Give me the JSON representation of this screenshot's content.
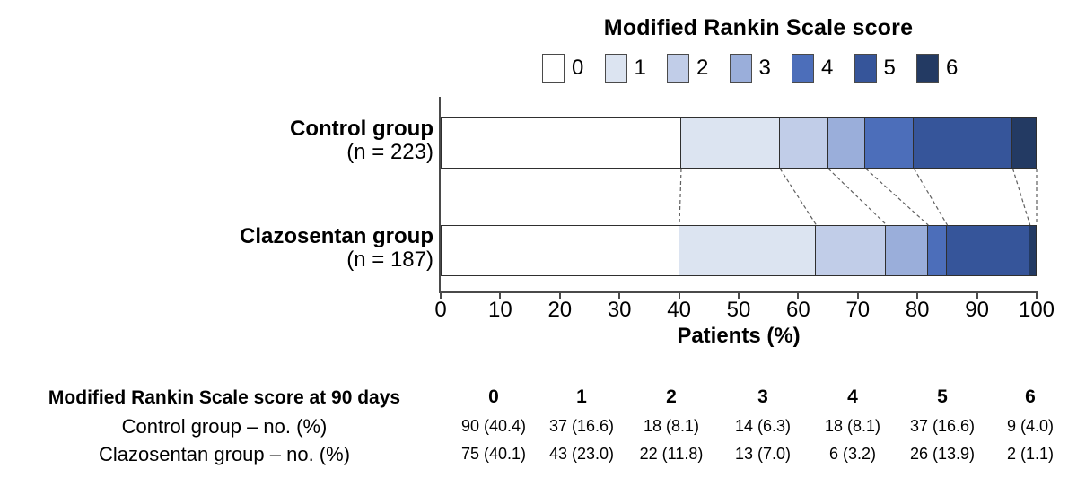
{
  "chart_data": {
    "type": "bar",
    "stacked": true,
    "orientation": "horizontal",
    "title": "Modified Rankin Scale score",
    "xlabel": "Patients (%)",
    "xlim": [
      0,
      100
    ],
    "x_ticks": [
      0,
      10,
      20,
      30,
      40,
      50,
      60,
      70,
      80,
      90,
      100
    ],
    "grid": false,
    "legend": {
      "position": "top",
      "labels": [
        "0",
        "1",
        "2",
        "3",
        "4",
        "5",
        "6"
      ],
      "colors": [
        "#ffffff",
        "#dce4f1",
        "#c1cde8",
        "#9aaeda",
        "#4c6eba",
        "#36559a",
        "#233a63"
      ]
    },
    "categories": [
      "0",
      "1",
      "2",
      "3",
      "4",
      "5",
      "6"
    ],
    "series": [
      {
        "name": "Control group",
        "n_label": "(n = 223)",
        "values": [
          40.4,
          16.6,
          8.1,
          6.3,
          8.1,
          16.6,
          4.0
        ]
      },
      {
        "name": "Clazosentan group",
        "n_label": "(n = 187)",
        "values": [
          40.1,
          23.0,
          11.8,
          7.0,
          3.2,
          13.9,
          1.1
        ]
      }
    ],
    "connector_lines_between_bars": true
  },
  "table": {
    "header_label": "Modified Rankin Scale score at 90 days",
    "columns": [
      "0",
      "1",
      "2",
      "3",
      "4",
      "5",
      "6"
    ],
    "rows": [
      {
        "label": "Control group – no. (%)",
        "values": [
          "90 (40.4)",
          "37 (16.6)",
          "18 (8.1)",
          "14 (6.3)",
          "18 (8.1)",
          "37 (16.6)",
          "9 (4.0)"
        ]
      },
      {
        "label": "Clazosentan group – no. (%)",
        "values": [
          "75 (40.1)",
          "43 (23.0)",
          "22 (11.8)",
          "13 (7.0)",
          "6 (3.2)",
          "26 (13.9)",
          "2 (1.1)"
        ]
      }
    ]
  }
}
